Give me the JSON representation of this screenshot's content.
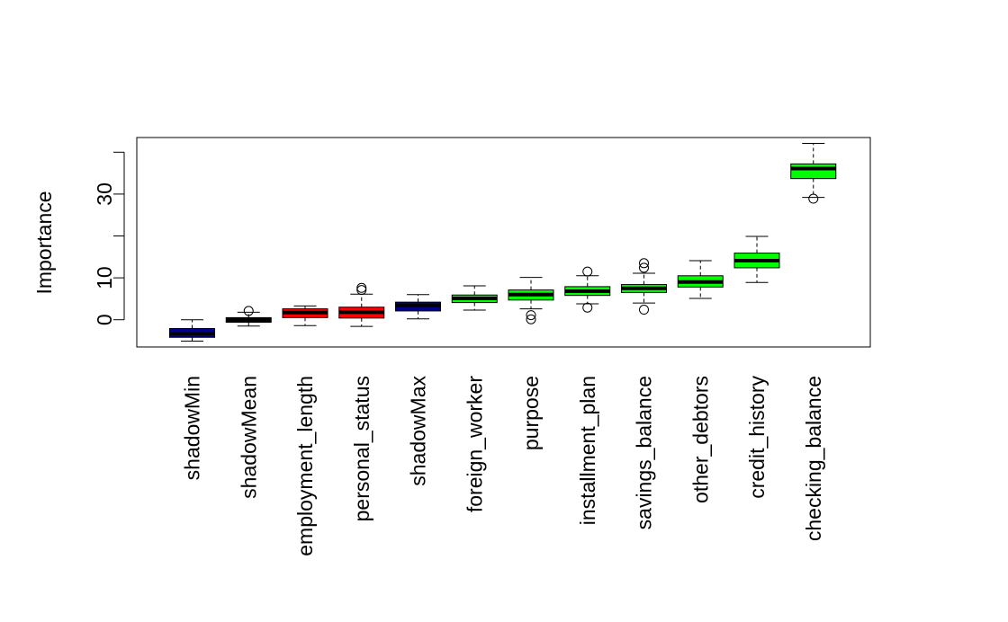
{
  "chart_data": {
    "type": "boxplot",
    "title": "",
    "xlabel": "",
    "ylabel": "Importance",
    "ylim": [
      -6.5,
      43.5
    ],
    "yticks": [
      0,
      10,
      30
    ],
    "ytick_labels": [
      "0",
      "10",
      "30"
    ],
    "yticks_unlabeled": [
      20,
      40
    ],
    "grid": false,
    "legend": "none",
    "colors": {
      "shadow": "#00008B",
      "rejected": "#FF0000",
      "tentative": "#FFFF00",
      "confirmed": "#00FF00",
      "median_line": "#000000"
    },
    "boxes": [
      {
        "label": "shadowMin",
        "color": "#00008B",
        "whisker_low": -5.1,
        "q1": -4.2,
        "median": -3.3,
        "q3": -2.1,
        "whisker_high": 0.0,
        "outliers": []
      },
      {
        "label": "shadowMean",
        "color": "#000000",
        "whisker_low": -1.5,
        "q1": -0.6,
        "median": 0.0,
        "q3": 0.5,
        "whisker_high": 1.8,
        "outliers": [
          2.1
        ]
      },
      {
        "label": "employment_length",
        "color": "#FF0000",
        "whisker_low": -1.4,
        "q1": 0.5,
        "median": 1.7,
        "q3": 2.6,
        "whisker_high": 3.3,
        "outliers": []
      },
      {
        "label": "personal_status",
        "color": "#FF0000",
        "whisker_low": -1.6,
        "q1": 0.4,
        "median": 1.8,
        "q3": 3.0,
        "whisker_high": 6.1,
        "outliers": [
          7.1,
          7.6
        ]
      },
      {
        "label": "shadowMax",
        "color": "#00008B",
        "whisker_low": 0.2,
        "q1": 2.1,
        "median": 3.4,
        "q3": 4.2,
        "whisker_high": 6.0,
        "outliers": []
      },
      {
        "label": "foreign_worker",
        "color": "#00FF00",
        "whisker_low": 2.3,
        "q1": 4.1,
        "median": 5.1,
        "q3": 5.9,
        "whisker_high": 8.1,
        "outliers": []
      },
      {
        "label": "purpose",
        "color": "#00FF00",
        "whisker_low": 2.6,
        "q1": 4.7,
        "median": 6.0,
        "q3": 7.1,
        "whisker_high": 10.1,
        "outliers": [
          1.1,
          0.1
        ]
      },
      {
        "label": "installment_plan",
        "color": "#00FF00",
        "whisker_low": 3.8,
        "q1": 5.8,
        "median": 6.8,
        "q3": 7.9,
        "whisker_high": 10.5,
        "outliers": [
          11.5,
          2.9
        ]
      },
      {
        "label": "savings_balance",
        "color": "#00FF00",
        "whisker_low": 4.0,
        "q1": 6.5,
        "median": 7.5,
        "q3": 8.4,
        "whisker_high": 11.1,
        "outliers": [
          12.4,
          13.5,
          2.4
        ]
      },
      {
        "label": "other_debtors",
        "color": "#00FF00",
        "whisker_low": 5.1,
        "q1": 7.8,
        "median": 9.0,
        "q3": 10.5,
        "whisker_high": 14.1,
        "outliers": []
      },
      {
        "label": "credit_history",
        "color": "#00FF00",
        "whisker_low": 8.9,
        "q1": 12.4,
        "median": 14.1,
        "q3": 15.9,
        "whisker_high": 19.9,
        "outliers": []
      },
      {
        "label": "checking_balance",
        "color": "#00FF00",
        "whisker_low": 29.2,
        "q1": 33.7,
        "median": 36.1,
        "q3": 37.2,
        "whisker_high": 42.1,
        "outliers": [
          28.9
        ]
      }
    ]
  }
}
